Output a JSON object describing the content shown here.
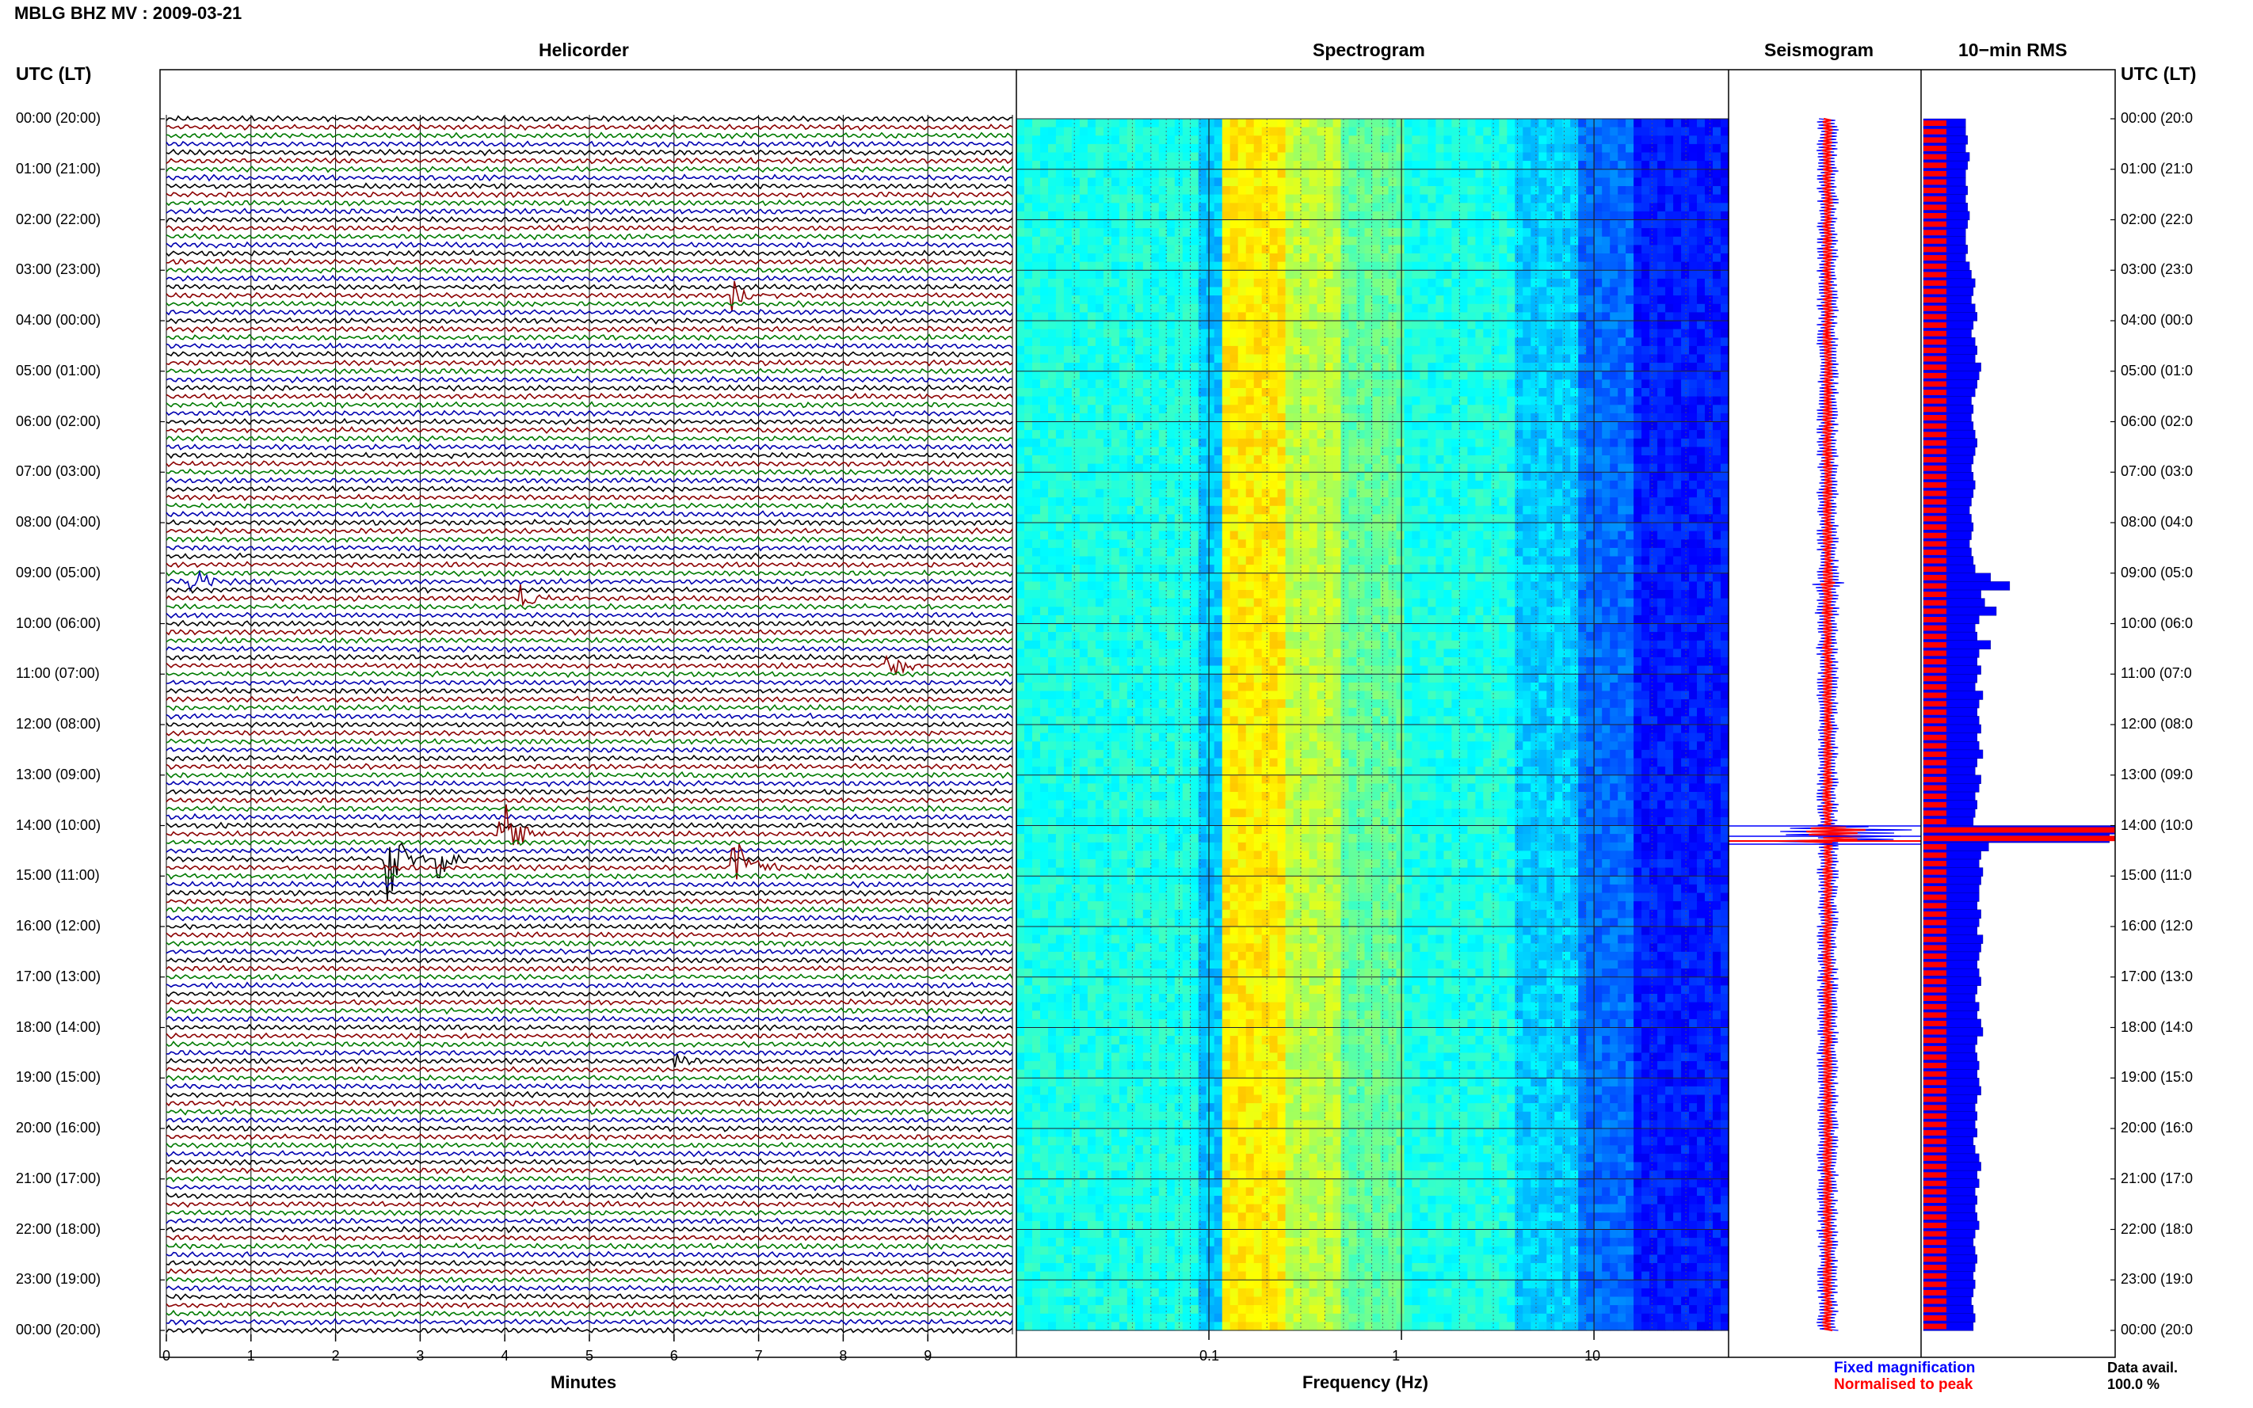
{
  "header": {
    "station_title": "MBLG BHZ MV : 2009-03-21",
    "utc_label_left": "UTC (LT)",
    "utc_label_right": "UTC (LT)"
  },
  "panels": {
    "helicorder": "Helicorder",
    "spectrogram": "Spectrogram",
    "seismogram": "Seismogram",
    "rms": "10−min RMS"
  },
  "time_labels": [
    "00:00 (20:00)",
    "01:00 (21:00)",
    "02:00 (22:00)",
    "03:00 (23:00)",
    "04:00 (00:00)",
    "05:00 (01:00)",
    "06:00 (02:00)",
    "07:00 (03:00)",
    "08:00 (04:00)",
    "09:00 (05:00)",
    "10:00 (06:00)",
    "11:00 (07:00)",
    "12:00 (08:00)",
    "13:00 (09:00)",
    "14:00 (10:00)",
    "15:00 (11:00)",
    "16:00 (12:00)",
    "17:00 (13:00)",
    "18:00 (14:00)",
    "19:00 (15:00)",
    "20:00 (16:00)",
    "21:00 (17:00)",
    "22:00 (18:00)",
    "23:00 (19:00)",
    "00:00 (20:00)"
  ],
  "time_labels_right": [
    "00:00 (20:0",
    "01:00 (21:0",
    "02:00 (22:0",
    "03:00 (23:0",
    "04:00 (00:0",
    "05:00 (01:0",
    "06:00 (02:0",
    "07:00 (03:0",
    "08:00 (04:0",
    "09:00 (05:0",
    "10:00 (06:0",
    "11:00 (07:0",
    "12:00 (08:0",
    "13:00 (09:0",
    "14:00 (10:0",
    "15:00 (11:0",
    "16:00 (12:0",
    "17:00 (13:0",
    "18:00 (14:0",
    "19:00 (15:0",
    "20:00 (16:0",
    "21:00 (17:0",
    "22:00 (18:0",
    "23:00 (19:0",
    "00:00 (20:0"
  ],
  "footer": {
    "fixed_magnification": "Fixed magnification",
    "normalised_to_peak": "Normalised to peak",
    "data_avail_label": "Data avail.",
    "data_avail_value": "100.0 %"
  },
  "colors": {
    "trace_cycle": [
      "#000000",
      "#8b0000",
      "#007a00",
      "#0000b0"
    ],
    "fixed": "#0000ff",
    "normalised": "#ff0000"
  },
  "chart_data": [
    {
      "type": "line",
      "title": "Helicorder",
      "xlabel": "Minutes",
      "ylabel": "UTC (LT)",
      "x_ticks": [
        "0",
        "1",
        "2",
        "3",
        "4",
        "5",
        "6",
        "7",
        "8",
        "9"
      ],
      "xlim": [
        0,
        10
      ],
      "rows_per_hour": 6,
      "grid": true,
      "events": [
        {
          "hour": 3,
          "minute": 6.7,
          "amplitude": 0.3
        },
        {
          "hour": 9,
          "minute": 0.3,
          "amplitude": 0.4
        },
        {
          "hour": 9,
          "minute": 4.2,
          "amplitude": 0.3
        },
        {
          "hour": 10,
          "minute": 8.5,
          "amplitude": 0.35
        },
        {
          "hour": 14,
          "minute": 2.6,
          "amplitude": 1.0
        },
        {
          "hour": 14,
          "minute": 3.2,
          "amplitude": 0.5
        },
        {
          "hour": 14,
          "minute": 3.95,
          "amplitude": 1.0
        },
        {
          "hour": 14,
          "minute": 6.7,
          "amplitude": 0.8
        },
        {
          "hour": 18,
          "minute": 6.0,
          "amplitude": 0.25
        }
      ]
    },
    {
      "type": "heatmap",
      "title": "Spectrogram",
      "xlabel": "Frequency (Hz)",
      "x_scale": "log",
      "x_ticks": [
        "0.1",
        "1",
        "10"
      ],
      "xlim": [
        0.01,
        50
      ],
      "colormap": "jet"
    },
    {
      "type": "line",
      "title": "Seismogram",
      "series": [
        {
          "name": "Fixed magnification"
        },
        {
          "name": "Normalised to peak"
        }
      ]
    },
    {
      "type": "bar",
      "title": "10−min RMS",
      "orientation": "horizontal",
      "series": [
        {
          "name": "Fixed magnification"
        },
        {
          "name": "Normalised to peak"
        }
      ],
      "fixed_levels": [
        0.22,
        0.22,
        0.23,
        0.22,
        0.24,
        0.23,
        0.22,
        0.22,
        0.23,
        0.22,
        0.23,
        0.24,
        0.23,
        0.22,
        0.22,
        0.23,
        0.22,
        0.24,
        0.25,
        0.27,
        0.26,
        0.25,
        0.27,
        0.28,
        0.26,
        0.25,
        0.27,
        0.28,
        0.27,
        0.3,
        0.29,
        0.28,
        0.27,
        0.25,
        0.26,
        0.25,
        0.26,
        0.27,
        0.28,
        0.27,
        0.26,
        0.25,
        0.26,
        0.27,
        0.26,
        0.25,
        0.24,
        0.25,
        0.26,
        0.25,
        0.24,
        0.25,
        0.26,
        0.27,
        0.35,
        0.45,
        0.3,
        0.32,
        0.38,
        0.29,
        0.27,
        0.28,
        0.35,
        0.29,
        0.28,
        0.3,
        0.28,
        0.27,
        0.31,
        0.29,
        0.28,
        0.29,
        0.3,
        0.28,
        0.29,
        0.31,
        0.28,
        0.27,
        0.3,
        0.29,
        0.27,
        0.28,
        0.27,
        0.26,
        1.0,
        0.97,
        0.34,
        0.3,
        0.29,
        0.31,
        0.3,
        0.29,
        0.29,
        0.28,
        0.3,
        0.29,
        0.28,
        0.31,
        0.3,
        0.29,
        0.28,
        0.29,
        0.3,
        0.28,
        0.27,
        0.29,
        0.28,
        0.3,
        0.31,
        0.28,
        0.27,
        0.28,
        0.29,
        0.28,
        0.29,
        0.3,
        0.28,
        0.27,
        0.28,
        0.27,
        0.28,
        0.26,
        0.27,
        0.29,
        0.3,
        0.28,
        0.29,
        0.27,
        0.28,
        0.27,
        0.28,
        0.29,
        0.27,
        0.26,
        0.27,
        0.28,
        0.27,
        0.26,
        0.27,
        0.26,
        0.25,
        0.26,
        0.27,
        0.26
      ]
    }
  ]
}
